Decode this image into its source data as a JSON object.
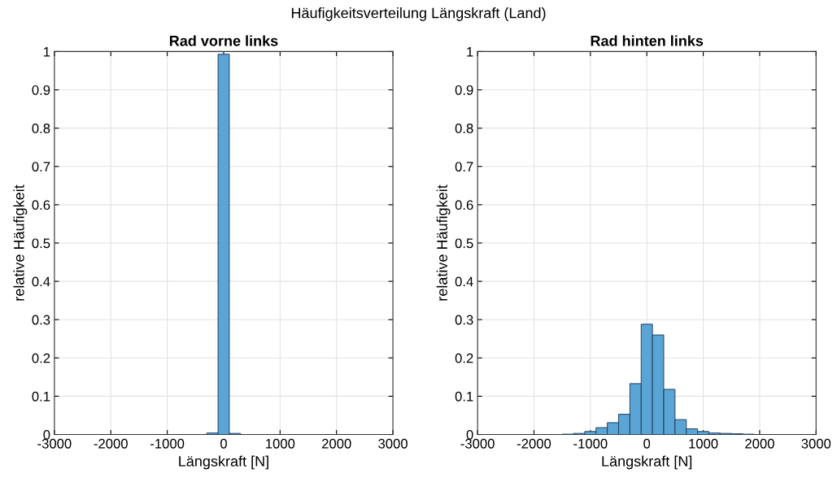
{
  "chart_data": [
    {
      "type": "histogram",
      "title": "Rad vorne links",
      "xlabel": "Längskraft [N]",
      "ylabel": "relative Häufigkeit",
      "annotations": [
        "Häufigkeitsverteilung Längskraft (Land)"
      ],
      "color": "#5ba4d6",
      "bins": [
        -300,
        -100,
        100,
        300
      ],
      "values": [
        0.004,
        0.993,
        0.003
      ],
      "xlim": [
        -3000,
        3000
      ],
      "xticks": [
        -3000,
        -2000,
        -1000,
        0,
        1000,
        2000,
        3000
      ],
      "ylim": [
        0,
        1
      ],
      "yticks": [
        0,
        0.1,
        0.2,
        0.3,
        0.4,
        0.5,
        0.6,
        0.7,
        0.8,
        0.9,
        1
      ],
      "grid": true
    },
    {
      "type": "histogram",
      "title": "Rad hinten links",
      "xlabel": "Längskraft [N]",
      "ylabel": "relative Häufigkeit",
      "color": "#5ba4d6",
      "bins": [
        -1500,
        -1300,
        -1100,
        -900,
        -700,
        -500,
        -300,
        -100,
        100,
        300,
        500,
        700,
        900,
        1100,
        1300,
        1500,
        1700,
        1900
      ],
      "values": [
        0.001,
        0.003,
        0.008,
        0.018,
        0.031,
        0.053,
        0.133,
        0.288,
        0.26,
        0.118,
        0.039,
        0.015,
        0.008,
        0.004,
        0.003,
        0.002,
        0.001
      ],
      "xlim": [
        -3000,
        3000
      ],
      "xticks": [
        -3000,
        -2000,
        -1000,
        0,
        1000,
        2000,
        3000
      ],
      "ylim": [
        0,
        1
      ],
      "yticks": [
        0,
        0.1,
        0.2,
        0.3,
        0.4,
        0.5,
        0.6,
        0.7,
        0.8,
        0.9,
        1
      ],
      "grid": true
    }
  ]
}
